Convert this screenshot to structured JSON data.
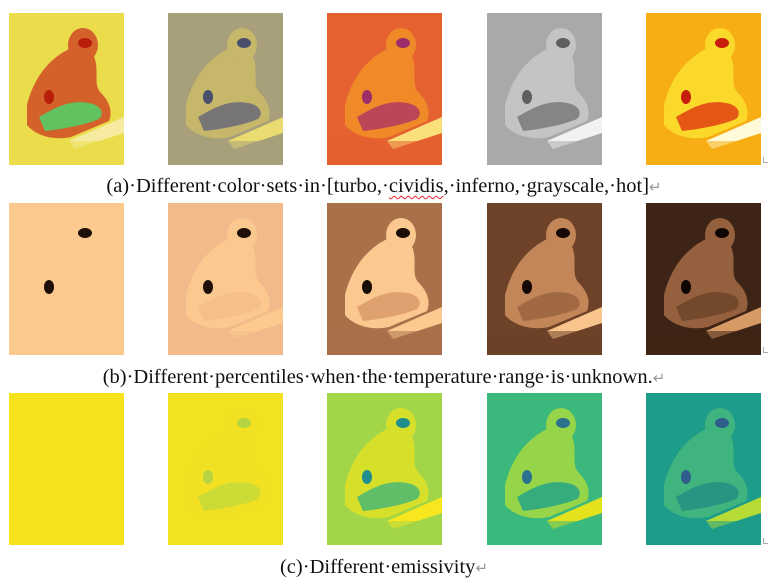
{
  "rows": [
    {
      "caption": {
        "pre": "(a)·Different·color·sets·in·[turbo,·",
        "flag": "cividis",
        "post": ",·inferno,·grayscale,·hot]"
      },
      "images": [
        {
          "name": "figure-a-turbo",
          "bg": "#eadc4a",
          "body": "#d4602a",
          "dark": "#b81e0a",
          "light": "#f6eba0",
          "accent": "#4fd46a"
        },
        {
          "name": "figure-a-cividis",
          "bg": "#a8a07a",
          "body": "#c7b76a",
          "dark": "#4a4f6e",
          "light": "#eadc70",
          "accent": "#6a6a78"
        },
        {
          "name": "figure-a-inferno",
          "bg": "#e56130",
          "body": "#f08a28",
          "dark": "#9c2d6a",
          "light": "#fbe07a",
          "accent": "#b13a60"
        },
        {
          "name": "figure-a-grayscale",
          "bg": "#a9a9a9",
          "body": "#c4c4c4",
          "dark": "#5f5f5f",
          "light": "#f2f2f2",
          "accent": "#7a7a7a"
        },
        {
          "name": "figure-a-hot",
          "bg": "#f7ae14",
          "body": "#fbd92a",
          "dark": "#c61e0a",
          "light": "#fffad8",
          "accent": "#e04010"
        }
      ]
    },
    {
      "caption": {
        "pre": "(b)·Different·percentiles·when·the·temperature·range·is·unknown.",
        "flag": "",
        "post": ""
      },
      "images": [
        {
          "name": "figure-b-percentile-1",
          "bg": "#fcc98e",
          "body": "#fcc98e",
          "dark": "#1e0f08",
          "light": "#fcc98e",
          "accent": "#fcc98e"
        },
        {
          "name": "figure-b-percentile-2",
          "bg": "#f2b98a",
          "body": "#fbc88f",
          "dark": "#1e0f08",
          "light": "#fcc98e",
          "accent": "#f4bd8a"
        },
        {
          "name": "figure-b-percentile-3",
          "bg": "#a9704a",
          "body": "#fbc88f",
          "dark": "#1a0c06",
          "light": "#fcc98e",
          "accent": "#d89a6a"
        },
        {
          "name": "figure-b-percentile-4",
          "bg": "#6e4228",
          "body": "#c28658",
          "dark": "#140904",
          "light": "#fac58c",
          "accent": "#9a6440"
        },
        {
          "name": "figure-b-percentile-5",
          "bg": "#3e2416",
          "body": "#94603e",
          "dark": "#0e0603",
          "light": "#d89a64",
          "accent": "#6e4428"
        }
      ]
    },
    {
      "caption": {
        "pre": "(c)·Different·emissivity",
        "flag": "",
        "post": ""
      },
      "images": [
        {
          "name": "figure-c-emissivity-1",
          "bg": "#f6e31e",
          "body": "#f6e31e",
          "dark": "#f6e31e",
          "light": "#f6e31e",
          "accent": "#f6e31e"
        },
        {
          "name": "figure-c-emissivity-2",
          "bg": "#f3e221",
          "body": "#f2e123",
          "dark": "#b5d442",
          "light": "#f3e221",
          "accent": "#c6d93a"
        },
        {
          "name": "figure-c-emissivity-3",
          "bg": "#a2d648",
          "body": "#d6df2a",
          "dark": "#1f8e8c",
          "light": "#f8e61f",
          "accent": "#4ab872"
        },
        {
          "name": "figure-c-emissivity-4",
          "bg": "#3bb97c",
          "body": "#96d44a",
          "dark": "#2a728e",
          "light": "#e3e21c",
          "accent": "#26a486"
        },
        {
          "name": "figure-c-emissivity-5",
          "bg": "#1e9c8a",
          "body": "#40b47e",
          "dark": "#2f5d8c",
          "light": "#b8dc36",
          "accent": "#229084"
        }
      ]
    }
  ],
  "return_mark": "↵"
}
